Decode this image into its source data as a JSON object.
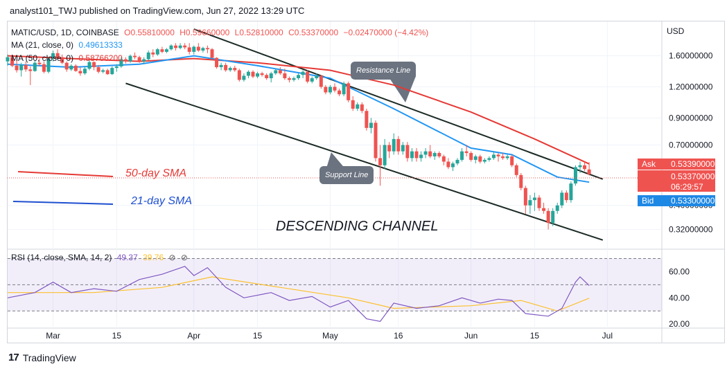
{
  "header": {
    "publisher": "analyst101_TWJ published on TradingView.com, Jun 27, 2022 13:29 UTC"
  },
  "legend": {
    "symbol": "MATIC/USD, 1D, COINBASE",
    "open": "O0.55810000",
    "high": "H0.59660000",
    "low": "L0.52810000",
    "close": "C0.53370000",
    "change": "−0.02470000 (−4.42%)",
    "ma21_label": "MA (21, close, 0)",
    "ma21_value": "0.49613333",
    "ma50_label": "MA (50, close, 0)",
    "ma50_value": "0.58766200",
    "rsi_label": "RSI (14, close, SMA, 14, 2)",
    "rsi_value": "49.37",
    "rsi_sma_value": "39.76",
    "eye_icon": "eye-off-icon"
  },
  "price_axis": {
    "currency": "USD",
    "ticks": [
      "1.60000000",
      "1.20000000",
      "0.90000000",
      "0.70000000",
      "0.40000000",
      "0.32000000"
    ]
  },
  "ask": {
    "label": "Ask",
    "value": "0.53390000"
  },
  "last": {
    "value": "0.53370000",
    "countdown": "06:29:57"
  },
  "bid": {
    "label": "Bid",
    "value": "0.53300000"
  },
  "rsi_axis": {
    "ticks": [
      "60.00",
      "40.00",
      "20.00"
    ]
  },
  "time_axis": {
    "ticks": [
      "Mar",
      "15",
      "Apr",
      "15",
      "May",
      "16",
      "Jun",
      "15",
      "Jul"
    ]
  },
  "annotations": {
    "resistance": "Resistance Line",
    "support": "Support Line",
    "sma50": "50-day SMA",
    "sma21": "21-day SMA",
    "channel": "DESCENDING CHANNEL"
  },
  "footer": {
    "brand": "TradingView"
  },
  "colors": {
    "up": "#26a69a",
    "down": "#ef5350",
    "ma50": "#e53935",
    "ma21": "#2196f3",
    "rsi": "#7e57c2",
    "rsi_sma": "#fbc02d"
  },
  "chart_data": {
    "type": "candlestick",
    "symbol": "MATIC/USD",
    "timeframe": "1D",
    "y_scale": "log",
    "ylim": [
      0.27,
      2.2
    ],
    "x_range": [
      "2022-02-19",
      "2022-07-13"
    ],
    "candles_ohlc": [
      [
        "2022-02-19",
        1.52,
        1.62,
        1.46,
        1.58
      ],
      [
        "2022-02-20",
        1.58,
        1.62,
        1.44,
        1.46
      ],
      [
        "2022-02-21",
        1.46,
        1.55,
        1.37,
        1.4
      ],
      [
        "2022-02-22",
        1.4,
        1.5,
        1.32,
        1.47
      ],
      [
        "2022-02-23",
        1.47,
        1.52,
        1.38,
        1.41
      ],
      [
        "2022-02-24",
        1.41,
        1.45,
        1.22,
        1.39
      ],
      [
        "2022-02-25",
        1.39,
        1.53,
        1.38,
        1.5
      ],
      [
        "2022-02-26",
        1.5,
        1.56,
        1.45,
        1.48
      ],
      [
        "2022-02-27",
        1.48,
        1.52,
        1.36,
        1.38
      ],
      [
        "2022-02-28",
        1.38,
        1.58,
        1.36,
        1.56
      ],
      [
        "2022-03-01",
        1.56,
        1.68,
        1.52,
        1.64
      ],
      [
        "2022-03-02",
        1.64,
        1.7,
        1.56,
        1.58
      ],
      [
        "2022-03-03",
        1.58,
        1.62,
        1.48,
        1.5
      ],
      [
        "2022-03-04",
        1.5,
        1.52,
        1.38,
        1.41
      ],
      [
        "2022-03-05",
        1.41,
        1.48,
        1.39,
        1.46
      ],
      [
        "2022-03-06",
        1.46,
        1.48,
        1.38,
        1.39
      ],
      [
        "2022-03-07",
        1.39,
        1.44,
        1.33,
        1.36
      ],
      [
        "2022-03-08",
        1.36,
        1.45,
        1.34,
        1.42
      ],
      [
        "2022-03-09",
        1.42,
        1.55,
        1.4,
        1.51
      ],
      [
        "2022-03-10",
        1.51,
        1.52,
        1.4,
        1.44
      ],
      [
        "2022-03-11",
        1.44,
        1.47,
        1.36,
        1.38
      ],
      [
        "2022-03-12",
        1.38,
        1.42,
        1.36,
        1.4
      ],
      [
        "2022-03-13",
        1.4,
        1.42,
        1.34,
        1.35
      ],
      [
        "2022-03-14",
        1.35,
        1.45,
        1.34,
        1.43
      ],
      [
        "2022-03-15",
        1.43,
        1.48,
        1.38,
        1.45
      ],
      [
        "2022-03-16",
        1.45,
        1.58,
        1.43,
        1.55
      ],
      [
        "2022-03-17",
        1.55,
        1.58,
        1.49,
        1.52
      ],
      [
        "2022-03-18",
        1.52,
        1.62,
        1.5,
        1.6
      ],
      [
        "2022-03-19",
        1.6,
        1.65,
        1.55,
        1.58
      ],
      [
        "2022-03-20",
        1.58,
        1.6,
        1.5,
        1.52
      ],
      [
        "2022-03-21",
        1.52,
        1.58,
        1.48,
        1.55
      ],
      [
        "2022-03-22",
        1.55,
        1.68,
        1.53,
        1.65
      ],
      [
        "2022-03-23",
        1.65,
        1.7,
        1.58,
        1.62
      ],
      [
        "2022-03-24",
        1.62,
        1.72,
        1.6,
        1.7
      ],
      [
        "2022-03-25",
        1.7,
        1.74,
        1.64,
        1.66
      ],
      [
        "2022-03-26",
        1.66,
        1.72,
        1.64,
        1.7
      ],
      [
        "2022-03-27",
        1.7,
        1.78,
        1.68,
        1.76
      ],
      [
        "2022-03-28",
        1.76,
        1.8,
        1.68,
        1.72
      ],
      [
        "2022-03-29",
        1.72,
        1.8,
        1.7,
        1.76
      ],
      [
        "2022-03-30",
        1.76,
        1.8,
        1.7,
        1.73
      ],
      [
        "2022-03-31",
        1.73,
        1.8,
        1.62,
        1.66
      ],
      [
        "2022-04-01",
        1.66,
        1.76,
        1.62,
        1.74
      ],
      [
        "2022-04-02",
        1.74,
        1.8,
        1.66,
        1.68
      ],
      [
        "2022-04-03",
        1.68,
        1.74,
        1.65,
        1.72
      ],
      [
        "2022-04-04",
        1.72,
        1.76,
        1.64,
        1.7
      ],
      [
        "2022-04-05",
        1.7,
        1.72,
        1.55,
        1.57
      ],
      [
        "2022-04-06",
        1.57,
        1.58,
        1.42,
        1.44
      ],
      [
        "2022-04-07",
        1.44,
        1.5,
        1.4,
        1.47
      ],
      [
        "2022-04-08",
        1.47,
        1.5,
        1.38,
        1.4
      ],
      [
        "2022-04-09",
        1.4,
        1.45,
        1.38,
        1.43
      ],
      [
        "2022-04-10",
        1.43,
        1.46,
        1.38,
        1.4
      ],
      [
        "2022-04-11",
        1.4,
        1.42,
        1.26,
        1.28
      ],
      [
        "2022-04-12",
        1.28,
        1.36,
        1.26,
        1.33
      ],
      [
        "2022-04-13",
        1.33,
        1.4,
        1.3,
        1.38
      ],
      [
        "2022-04-14",
        1.38,
        1.4,
        1.3,
        1.32
      ],
      [
        "2022-04-15",
        1.32,
        1.38,
        1.3,
        1.36
      ],
      [
        "2022-04-16",
        1.36,
        1.38,
        1.32,
        1.34
      ],
      [
        "2022-04-17",
        1.34,
        1.36,
        1.28,
        1.3
      ],
      [
        "2022-04-18",
        1.3,
        1.38,
        1.25,
        1.36
      ],
      [
        "2022-04-19",
        1.36,
        1.42,
        1.34,
        1.4
      ],
      [
        "2022-04-20",
        1.4,
        1.44,
        1.34,
        1.36
      ],
      [
        "2022-04-21",
        1.36,
        1.42,
        1.28,
        1.3
      ],
      [
        "2022-04-22",
        1.3,
        1.32,
        1.25,
        1.28
      ],
      [
        "2022-04-23",
        1.28,
        1.32,
        1.26,
        1.3
      ],
      [
        "2022-04-24",
        1.3,
        1.36,
        1.28,
        1.34
      ],
      [
        "2022-04-25",
        1.34,
        1.4,
        1.3,
        1.38
      ],
      [
        "2022-04-26",
        1.38,
        1.4,
        1.24,
        1.26
      ],
      [
        "2022-04-27",
        1.26,
        1.32,
        1.24,
        1.3
      ],
      [
        "2022-04-28",
        1.3,
        1.36,
        1.28,
        1.33
      ],
      [
        "2022-04-29",
        1.33,
        1.34,
        1.18,
        1.2
      ],
      [
        "2022-04-30",
        1.2,
        1.22,
        1.12,
        1.14
      ],
      [
        "2022-05-01",
        1.14,
        1.22,
        1.12,
        1.2
      ],
      [
        "2022-05-02",
        1.2,
        1.24,
        1.14,
        1.16
      ],
      [
        "2022-05-03",
        1.16,
        1.18,
        1.1,
        1.12
      ],
      [
        "2022-05-04",
        1.12,
        1.26,
        1.1,
        1.24
      ],
      [
        "2022-05-05",
        1.24,
        1.26,
        1.04,
        1.06
      ],
      [
        "2022-05-06",
        1.06,
        1.1,
        0.96,
        0.98
      ],
      [
        "2022-05-07",
        0.98,
        1.04,
        0.96,
        1.02
      ],
      [
        "2022-05-08",
        1.02,
        1.04,
        0.94,
        0.96
      ],
      [
        "2022-05-09",
        0.96,
        0.98,
        0.8,
        0.82
      ],
      [
        "2022-05-10",
        0.82,
        0.9,
        0.78,
        0.86
      ],
      [
        "2022-05-11",
        0.86,
        0.88,
        0.6,
        0.62
      ],
      [
        "2022-05-12",
        0.62,
        0.7,
        0.48,
        0.58
      ],
      [
        "2022-05-13",
        0.58,
        0.74,
        0.56,
        0.7
      ],
      [
        "2022-05-14",
        0.7,
        0.72,
        0.62,
        0.66
      ],
      [
        "2022-05-15",
        0.66,
        0.78,
        0.64,
        0.74
      ],
      [
        "2022-05-16",
        0.74,
        0.76,
        0.64,
        0.66
      ],
      [
        "2022-05-17",
        0.66,
        0.72,
        0.64,
        0.7
      ],
      [
        "2022-05-18",
        0.7,
        0.72,
        0.6,
        0.62
      ],
      [
        "2022-05-19",
        0.62,
        0.68,
        0.6,
        0.66
      ],
      [
        "2022-05-20",
        0.66,
        0.68,
        0.6,
        0.62
      ],
      [
        "2022-05-21",
        0.62,
        0.66,
        0.6,
        0.64
      ],
      [
        "2022-05-22",
        0.64,
        0.68,
        0.62,
        0.66
      ],
      [
        "2022-05-23",
        0.66,
        0.7,
        0.62,
        0.63
      ],
      [
        "2022-05-24",
        0.63,
        0.66,
        0.61,
        0.65
      ],
      [
        "2022-05-25",
        0.65,
        0.66,
        0.62,
        0.63
      ],
      [
        "2022-05-26",
        0.63,
        0.64,
        0.58,
        0.6
      ],
      [
        "2022-05-27",
        0.6,
        0.62,
        0.56,
        0.57
      ],
      [
        "2022-05-28",
        0.57,
        0.6,
        0.55,
        0.59
      ],
      [
        "2022-05-29",
        0.59,
        0.62,
        0.58,
        0.61
      ],
      [
        "2022-05-30",
        0.61,
        0.68,
        0.6,
        0.66
      ],
      [
        "2022-05-31",
        0.66,
        0.7,
        0.63,
        0.65
      ],
      [
        "2022-06-01",
        0.65,
        0.66,
        0.6,
        0.61
      ],
      [
        "2022-06-02",
        0.61,
        0.64,
        0.59,
        0.63
      ],
      [
        "2022-06-03",
        0.63,
        0.64,
        0.59,
        0.6
      ],
      [
        "2022-06-04",
        0.6,
        0.62,
        0.59,
        0.61
      ],
      [
        "2022-06-05",
        0.61,
        0.63,
        0.6,
        0.62
      ],
      [
        "2022-06-06",
        0.62,
        0.66,
        0.61,
        0.64
      ],
      [
        "2022-06-07",
        0.64,
        0.65,
        0.6,
        0.63
      ],
      [
        "2022-06-08",
        0.63,
        0.65,
        0.61,
        0.62
      ],
      [
        "2022-06-09",
        0.62,
        0.64,
        0.61,
        0.63
      ],
      [
        "2022-06-10",
        0.63,
        0.64,
        0.57,
        0.58
      ],
      [
        "2022-06-11",
        0.58,
        0.59,
        0.52,
        0.53
      ],
      [
        "2022-06-12",
        0.53,
        0.54,
        0.46,
        0.47
      ],
      [
        "2022-06-13",
        0.47,
        0.48,
        0.37,
        0.4
      ],
      [
        "2022-06-14",
        0.4,
        0.44,
        0.37,
        0.42
      ],
      [
        "2022-06-15",
        0.42,
        0.45,
        0.38,
        0.43
      ],
      [
        "2022-06-16",
        0.43,
        0.44,
        0.38,
        0.39
      ],
      [
        "2022-06-17",
        0.39,
        0.41,
        0.37,
        0.38
      ],
      [
        "2022-06-18",
        0.38,
        0.39,
        0.32,
        0.34
      ],
      [
        "2022-06-19",
        0.34,
        0.39,
        0.33,
        0.38
      ],
      [
        "2022-06-20",
        0.38,
        0.41,
        0.37,
        0.4
      ],
      [
        "2022-06-21",
        0.4,
        0.46,
        0.39,
        0.45
      ],
      [
        "2022-06-22",
        0.45,
        0.46,
        0.41,
        0.42
      ],
      [
        "2022-06-23",
        0.42,
        0.5,
        0.41,
        0.49
      ],
      [
        "2022-06-24",
        0.49,
        0.58,
        0.48,
        0.57
      ],
      [
        "2022-06-25",
        0.57,
        0.6,
        0.54,
        0.58
      ],
      [
        "2022-06-26",
        0.58,
        0.6,
        0.55,
        0.56
      ],
      [
        "2022-06-27",
        0.5581,
        0.5966,
        0.5281,
        0.5337
      ]
    ],
    "ma50_points": [
      [
        "2022-02-19",
        1.6
      ],
      [
        "2022-03-05",
        1.56
      ],
      [
        "2022-03-20",
        1.52
      ],
      [
        "2022-04-01",
        1.56
      ],
      [
        "2022-04-15",
        1.5
      ],
      [
        "2022-05-01",
        1.4
      ],
      [
        "2022-05-15",
        1.22
      ],
      [
        "2022-06-01",
        0.95
      ],
      [
        "2022-06-15",
        0.74
      ],
      [
        "2022-06-27",
        0.587662
      ]
    ],
    "ma21_points": [
      [
        "2022-02-19",
        1.48
      ],
      [
        "2022-03-05",
        1.44
      ],
      [
        "2022-03-20",
        1.48
      ],
      [
        "2022-04-01",
        1.6
      ],
      [
        "2022-04-15",
        1.46
      ],
      [
        "2022-05-01",
        1.3
      ],
      [
        "2022-05-15",
        0.98
      ],
      [
        "2022-06-01",
        0.68
      ],
      [
        "2022-06-10",
        0.64
      ],
      [
        "2022-06-20",
        0.52
      ],
      [
        "2022-06-27",
        0.496133
      ]
    ],
    "resistance_line": [
      [
        "2022-04-01",
        2.05
      ],
      [
        "2022-06-30",
        0.51
      ]
    ],
    "support_line": [
      [
        "2022-03-17",
        1.24
      ],
      [
        "2022-06-30",
        0.29
      ]
    ],
    "rsi": {
      "ylim": [
        18,
        75
      ],
      "bands": [
        30,
        70
      ],
      "midline": 50,
      "rsi_points": [
        [
          "2022-02-19",
          40
        ],
        [
          "2022-02-25",
          44
        ],
        [
          "2022-03-01",
          52
        ],
        [
          "2022-03-05",
          44
        ],
        [
          "2022-03-10",
          47
        ],
        [
          "2022-03-15",
          45
        ],
        [
          "2022-03-20",
          54
        ],
        [
          "2022-03-25",
          58
        ],
        [
          "2022-03-30",
          64
        ],
        [
          "2022-04-01",
          57
        ],
        [
          "2022-04-04",
          63
        ],
        [
          "2022-04-08",
          48
        ],
        [
          "2022-04-12",
          40
        ],
        [
          "2022-04-18",
          44
        ],
        [
          "2022-04-22",
          38
        ],
        [
          "2022-04-27",
          41
        ],
        [
          "2022-05-01",
          33
        ],
        [
          "2022-05-05",
          38
        ],
        [
          "2022-05-09",
          24
        ],
        [
          "2022-05-12",
          22
        ],
        [
          "2022-05-15",
          36
        ],
        [
          "2022-05-20",
          32
        ],
        [
          "2022-05-25",
          34
        ],
        [
          "2022-05-30",
          40
        ],
        [
          "2022-06-03",
          36
        ],
        [
          "2022-06-07",
          39
        ],
        [
          "2022-06-10",
          38
        ],
        [
          "2022-06-13",
          28
        ],
        [
          "2022-06-18",
          26
        ],
        [
          "2022-06-21",
          32
        ],
        [
          "2022-06-24",
          52
        ],
        [
          "2022-06-25",
          56
        ],
        [
          "2022-06-27",
          49.37
        ]
      ],
      "sma_points": [
        [
          "2022-02-19",
          44
        ],
        [
          "2022-03-10",
          44
        ],
        [
          "2022-03-25",
          48
        ],
        [
          "2022-04-05",
          56
        ],
        [
          "2022-04-20",
          48
        ],
        [
          "2022-05-05",
          40
        ],
        [
          "2022-05-15",
          32
        ],
        [
          "2022-06-01",
          34
        ],
        [
          "2022-06-12",
          38
        ],
        [
          "2022-06-20",
          30
        ],
        [
          "2022-06-27",
          39.76
        ]
      ]
    }
  }
}
